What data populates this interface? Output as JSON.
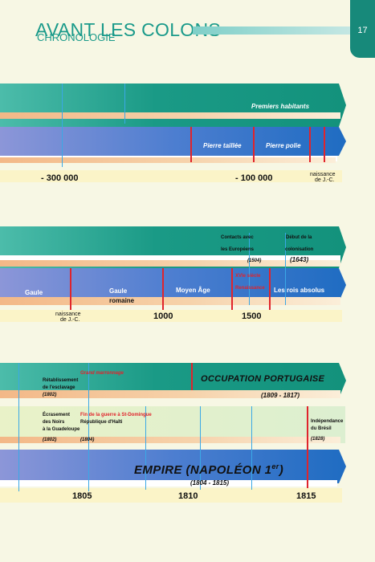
{
  "header": {
    "title": "AVANT LES COLONS",
    "subtitle": "CHRONOLOGIE",
    "page_number": "17"
  },
  "timeline1": {
    "band_label": "Premiers habitants",
    "periods": [
      "Pierre taillée",
      "Pierre polie"
    ],
    "ticks": [
      "- 300 000",
      "- 100 000"
    ],
    "birth_line1": "naissance",
    "birth_line2": "de J.-C."
  },
  "timeline2": {
    "contacts_line1": "Contacts avec",
    "contacts_line2": "les Européens",
    "contacts_year": "(1504)",
    "colonisation_line1": "Début de la",
    "colonisation_line2": "colonisation",
    "colonisation_year": "(1643)",
    "xvi_line1": "XVIe siècle",
    "xvi_line2": "Renaissance",
    "periods": [
      "Gaule",
      "Gaule",
      "romaine",
      "Moyen Âge",
      "Les rois absolus"
    ],
    "birth_line1": "naissance",
    "birth_line2": "de J.-C.",
    "ticks": [
      "1000",
      "1500"
    ]
  },
  "timeline3": {
    "grand_marronnage": "Grand marronnage",
    "retab_line1": "Rétablissement",
    "retab_line2": "de l'esclavage",
    "retab_year": "(1802)",
    "occupation": "OCCUPATION PORTUGAISE",
    "occupation_years": "(1809 - 1817)",
    "ecrasement_line1": "Écrasement",
    "ecrasement_line2": "des Noirs",
    "ecrasement_line3": "à la Guadeloupe",
    "ecrasement_year": "(1802)",
    "fin_guerre": "Fin de la guerre à St-Domingue",
    "haiti": "République d'Haïti",
    "haiti_year": "(1804)",
    "independance_line1": "Indépendance",
    "independance_line2": "du Brésil",
    "independance_year": "(1828)",
    "empire": "EMPIRE (NAPOLÉON 1",
    "empire_sup": "er",
    "empire_close": ")",
    "empire_years": "(1804 - 1815)",
    "ticks": [
      "1805",
      "1810",
      "1815"
    ]
  },
  "colors": {
    "accent_teal": "#1a9a8a",
    "red_marker": "#e0242c",
    "blue_marker": "#3aa8e6"
  }
}
